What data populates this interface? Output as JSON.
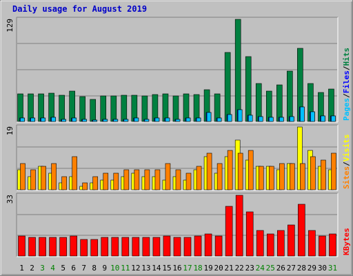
{
  "chart_data": {
    "type": "bar",
    "title": "Daily usage for August 2019",
    "categories": [
      "1",
      "2",
      "3",
      "4",
      "5",
      "6",
      "7",
      "8",
      "9",
      "10",
      "11",
      "12",
      "13",
      "14",
      "15",
      "16",
      "17",
      "18",
      "19",
      "20",
      "21",
      "22",
      "23",
      "24",
      "25",
      "26",
      "27",
      "28",
      "29",
      "30",
      "31"
    ],
    "weekend_days": [
      "3",
      "4",
      "10",
      "11",
      "17",
      "18",
      "24",
      "25",
      "31"
    ],
    "colors": {
      "background": "#c0c0c0",
      "outer": "#808080",
      "title": "#0000c8",
      "hits": "#008040",
      "files": "#0000ff",
      "pages": "#00c0ff",
      "visits": "#ffff00",
      "sites": "#ff8000",
      "kbytes": "#ff0000",
      "weekday_label": "#000000",
      "weekend_label": "#008000"
    },
    "panels": [
      {
        "id": "top",
        "ymax_label": "129",
        "ymax": 129,
        "legend": [
          {
            "text": "Pages",
            "color": "#00c0ff"
          },
          {
            "text": "/",
            "color": "#000000"
          },
          {
            "text": "Files",
            "color": "#0000ff"
          },
          {
            "text": "/",
            "color": "#000000"
          },
          {
            "text": "Hits",
            "color": "#008040"
          }
        ],
        "series": [
          {
            "name": "Hits",
            "color": "#008040",
            "values": [
              35,
              35,
              35,
              36,
              33,
              38,
              31,
              28,
              32,
              32,
              33,
              33,
              32,
              34,
              35,
              32,
              35,
              34,
              40,
              35,
              87,
              129,
              82,
              48,
              38,
              46,
              64,
              92,
              48,
              37,
              41
            ]
          },
          {
            "name": "Files",
            "color": "#0000ff",
            "values": [
              4,
              4,
              4,
              5,
              3,
              4,
              3,
              2,
              3,
              3,
              3,
              4,
              3,
              4,
              4,
              3,
              4,
              4,
              11,
              4,
              9,
              15,
              8,
              6,
              5,
              5,
              6,
              18,
              12,
              7,
              7
            ]
          },
          {
            "name": "Pages",
            "color": "#00c0ff",
            "values": [
              4,
              4,
              4,
              5,
              3,
              4,
              3,
              2,
              3,
              3,
              3,
              4,
              3,
              4,
              4,
              3,
              4,
              4,
              11,
              4,
              9,
              15,
              8,
              6,
              5,
              5,
              6,
              18,
              12,
              7,
              7
            ]
          }
        ]
      },
      {
        "id": "middle",
        "ymax_label": "19",
        "ymax": 19,
        "legend": [
          {
            "text": "Sites",
            "color": "#ff8000"
          },
          {
            "text": "/",
            "color": "#000000"
          },
          {
            "text": "Visits",
            "color": "#ffff00"
          }
        ],
        "series": [
          {
            "name": "Visits",
            "color": "#ffff00",
            "values": [
              6,
              4,
              7,
              5,
              2,
              4,
              1,
              2,
              3,
              3,
              4,
              5,
              4,
              4,
              3,
              4,
              3,
              6,
              10,
              5,
              10,
              15,
              9,
              7,
              7,
              6,
              8,
              19,
              12,
              7,
              6
            ]
          },
          {
            "name": "Sites",
            "color": "#ff8000",
            "values": [
              8,
              6,
              7,
              8,
              4,
              10,
              2,
              4,
              5,
              5,
              6,
              6,
              6,
              6,
              8,
              6,
              5,
              7,
              11,
              8,
              12,
              11,
              12,
              7,
              7,
              8,
              8,
              8,
              10,
              9,
              11
            ]
          }
        ]
      },
      {
        "id": "bottom",
        "ymax_label": "33",
        "ymax": 33,
        "legend": [
          {
            "text": "KBytes",
            "color": "#ff0000"
          }
        ],
        "series": [
          {
            "name": "KBytes",
            "color": "#ff0000",
            "values": [
              11,
              10,
              10,
              10,
              10,
              11,
              9,
              9,
              10,
              10,
              10,
              10,
              10,
              10,
              11,
              10,
              10,
              11,
              12,
              11,
              27,
              33,
              24,
              14,
              12,
              14,
              17,
              28,
              14,
              11,
              12
            ]
          }
        ]
      }
    ]
  }
}
